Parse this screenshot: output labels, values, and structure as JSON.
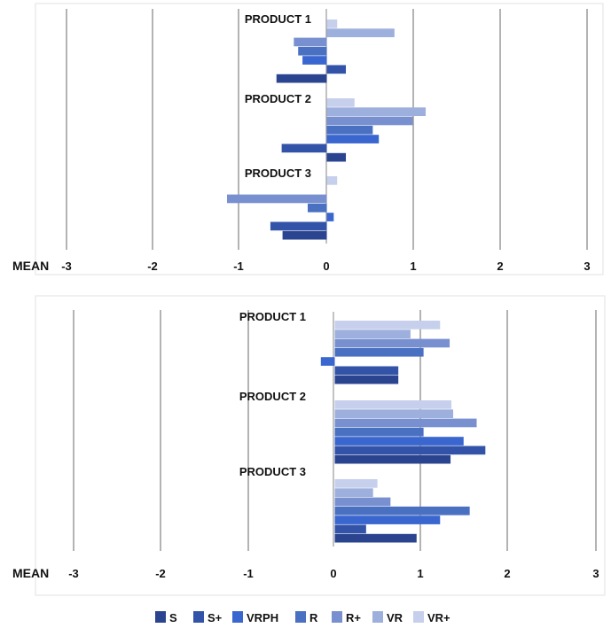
{
  "chart_data": [
    {
      "type": "bar",
      "orientation": "horizontal",
      "axis_title": "MEAN",
      "xlim": [
        -3,
        3
      ],
      "ticks": [
        "-3",
        "-2",
        "-1",
        "0",
        "1",
        "2",
        "3"
      ],
      "grid": "vertical lines",
      "groups": [
        {
          "label": "PRODUCT 1",
          "values": {
            "VR+": 0.12,
            "VR": 0.78,
            "R+": -0.38,
            "R": -0.33,
            "VRPH": -0.28,
            "S+": 0.22,
            "S": -0.58
          }
        },
        {
          "label": "PRODUCT 2",
          "values": {
            "VR+": 0.32,
            "VR": 1.14,
            "R+": 0.99,
            "R": 0.53,
            "VRPH": 0.6,
            "S+": -0.52,
            "S": 0.22
          }
        },
        {
          "label": "PRODUCT 3",
          "values": {
            "VR+": 0.12,
            "VR": 0.0,
            "R+": -1.15,
            "R": -0.22,
            "VRPH": 0.08,
            "S+": -0.65,
            "S": -0.51
          }
        }
      ]
    },
    {
      "type": "bar",
      "orientation": "horizontal",
      "axis_title": "MEAN",
      "xlim": [
        -3,
        3
      ],
      "ticks": [
        "-3",
        "-2",
        "-1",
        "0",
        "1",
        "2",
        "3"
      ],
      "grid": "vertical lines",
      "groups": [
        {
          "label": "PRODUCT 1",
          "values": {
            "VR+": 1.21,
            "VR": 0.87,
            "R+": 1.32,
            "R": 1.02,
            "VRPH": -0.16,
            "S+": 0.73,
            "S": 0.73
          }
        },
        {
          "label": "PRODUCT 2",
          "values": {
            "VR+": 1.34,
            "VR": 1.36,
            "R+": 1.63,
            "R": 1.02,
            "VRPH": 1.48,
            "S+": 1.73,
            "S": 1.33
          }
        },
        {
          "label": "PRODUCT 3",
          "values": {
            "VR+": 0.49,
            "VR": 0.44,
            "R+": 0.64,
            "R": 1.55,
            "VRPH": 1.21,
            "S+": 0.36,
            "S": 0.94
          }
        }
      ]
    }
  ],
  "legend": [
    {
      "name": "S",
      "color": "#2b4490"
    },
    {
      "name": "S+",
      "color": "#3253a8"
    },
    {
      "name": "VRPH",
      "color": "#3a66cf"
    },
    {
      "name": "R",
      "color": "#4a70c2"
    },
    {
      "name": "R+",
      "color": "#7890cf"
    },
    {
      "name": "VR",
      "color": "#9dafdc"
    },
    {
      "name": "VR+",
      "color": "#c6d0ec"
    }
  ]
}
